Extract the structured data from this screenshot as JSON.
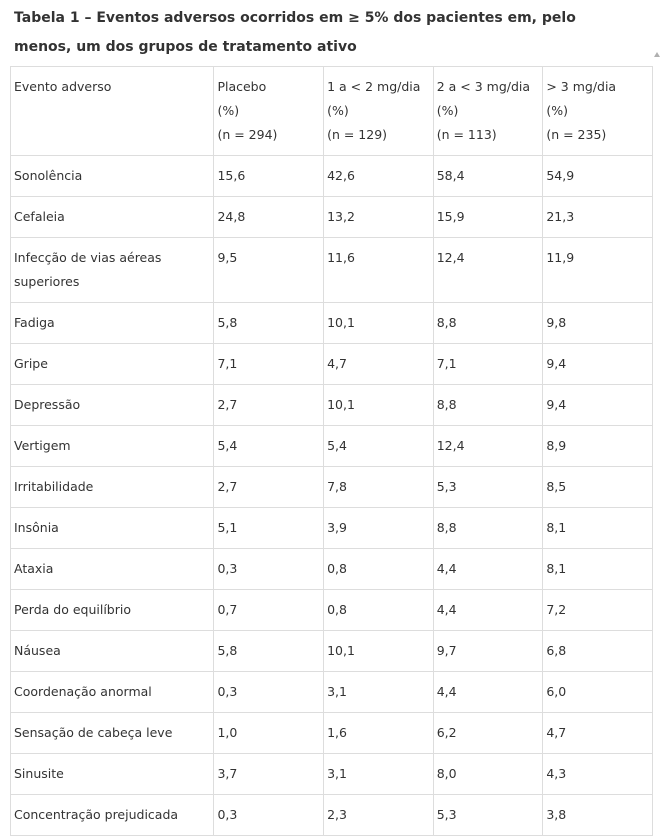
{
  "title": "Tabela 1 – Eventos adversos ocorridos em ≥ 5% dos pacientes em, pelo menos, um dos grupos de tratamento ativo",
  "header": {
    "col0": "Evento adverso",
    "col1": [
      "Placebo",
      "(%)",
      "(n = 294)"
    ],
    "col2": [
      "1 a < 2 mg/dia",
      "(%)",
      "(n = 129)"
    ],
    "col3": [
      "2 a < 3 mg/dia",
      "(%)",
      "(n = 113)"
    ],
    "col4": [
      "> 3 mg/dia",
      "(%)",
      "(n = 235)"
    ]
  },
  "rows": [
    {
      "event": "Sonolência",
      "placebo": "15,6",
      "d1": "42,6",
      "d2": "58,4",
      "d3": "54,9"
    },
    {
      "event": "Cefaleia",
      "placebo": "24,8",
      "d1": "13,2",
      "d2": "15,9",
      "d3": "21,3"
    },
    {
      "event": "Infecção de vias aéreas superiores",
      "placebo": "9,5",
      "d1": "11,6",
      "d2": "12,4",
      "d3": "11,9"
    },
    {
      "event": "Fadiga",
      "placebo": "5,8",
      "d1": "10,1",
      "d2": "8,8",
      "d3": "9,8"
    },
    {
      "event": "Gripe",
      "placebo": "7,1",
      "d1": "4,7",
      "d2": "7,1",
      "d3": "9,4"
    },
    {
      "event": "Depressão",
      "placebo": "2,7",
      "d1": "10,1",
      "d2": "8,8",
      "d3": "9,4"
    },
    {
      "event": "Vertigem",
      "placebo": "5,4",
      "d1": "5,4",
      "d2": "12,4",
      "d3": "8,9"
    },
    {
      "event": "Irritabilidade",
      "placebo": "2,7",
      "d1": "7,8",
      "d2": "5,3",
      "d3": "8,5"
    },
    {
      "event": "Insônia",
      "placebo": "5,1",
      "d1": "3,9",
      "d2": "8,8",
      "d3": "8,1"
    },
    {
      "event": "Ataxia",
      "placebo": "0,3",
      "d1": "0,8",
      "d2": "4,4",
      "d3": "8,1"
    },
    {
      "event": "Perda do equilíbrio",
      "placebo": "0,7",
      "d1": "0,8",
      "d2": "4,4",
      "d3": "7,2"
    },
    {
      "event": "Náusea",
      "placebo": "5,8",
      "d1": "10,1",
      "d2": "9,7",
      "d3": "6,8"
    },
    {
      "event": "Coordenação anormal",
      "placebo": "0,3",
      "d1": "3,1",
      "d2": "4,4",
      "d3": "6,0"
    },
    {
      "event": "Sensação de cabeça leve",
      "placebo": "1,0",
      "d1": "1,6",
      "d2": "6,2",
      "d3": "4,7"
    },
    {
      "event": "Sinusite",
      "placebo": "3,7",
      "d1": "3,1",
      "d2": "8,0",
      "d3": "4,3"
    },
    {
      "event": "Concentração prejudicada",
      "placebo": "0,3",
      "d1": "2,3",
      "d2": "5,3",
      "d3": "3,8"
    }
  ]
}
